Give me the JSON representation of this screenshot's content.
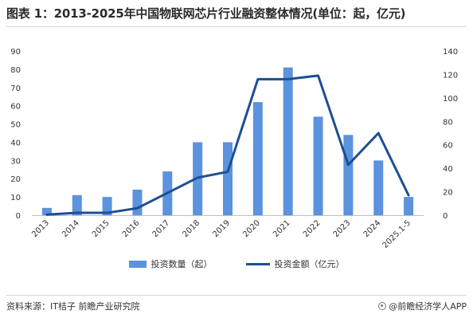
{
  "title": "图表 1：2013-2025年中国物联网芯片行业融资整体情况(单位：起，亿元)",
  "source": "资料来源：IT桔子 前瞻产业研究院",
  "brand": "@前瞻经济学人APP",
  "colors": {
    "bar": "#5b93de",
    "line": "#1d4f91"
  },
  "chart_data": {
    "type": "bar",
    "title": "图表 1：2013-2025年中国物联网芯片行业融资整体情况(单位：起，亿元)",
    "categories": [
      "2013",
      "2014",
      "2015",
      "2016",
      "2017",
      "2018",
      "2019",
      "2020",
      "2021",
      "2022",
      "2023",
      "2024",
      "2025.1-5"
    ],
    "series": [
      {
        "name": "投资数量（起）",
        "type": "bar",
        "axis": "left",
        "values": [
          4,
          11,
          10,
          14,
          24,
          40,
          40,
          62,
          81,
          54,
          44,
          30,
          10
        ]
      },
      {
        "name": "投资金额（亿元）",
        "type": "line",
        "axis": "right",
        "values": [
          0.5,
          2,
          2,
          6,
          19,
          32,
          37,
          116,
          116,
          119,
          43,
          70,
          17
        ]
      }
    ],
    "y_left": {
      "ticks": [
        0,
        10,
        20,
        30,
        40,
        50,
        60,
        70,
        80,
        90
      ],
      "ylim": [
        0,
        90
      ]
    },
    "y_right": {
      "ticks": [
        0,
        20,
        40,
        60,
        80,
        100,
        120,
        140
      ],
      "ylim": [
        0,
        140
      ]
    },
    "grid": false,
    "legend": "bottom"
  }
}
